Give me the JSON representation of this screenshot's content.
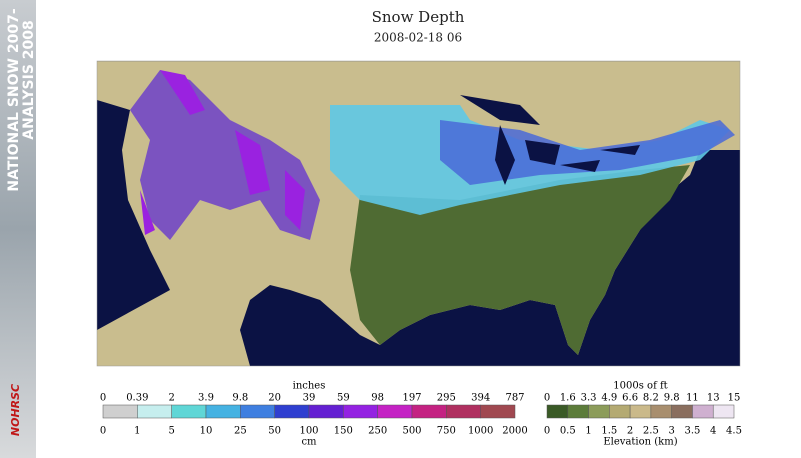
{
  "header": {
    "title": "Snow Depth",
    "subtitle": "2008-02-18 06"
  },
  "sidebar": {
    "line1": "NATIONAL SNOW 2007-",
    "line2": "ANALYSIS 2008",
    "logo": "NOHRSC"
  },
  "snow_legend": {
    "top_unit": "inches",
    "bottom_unit": "cm",
    "top_labels": [
      0,
      0.39,
      2,
      3.9,
      9.8,
      20,
      39,
      59,
      98,
      197,
      295,
      394,
      787
    ],
    "bottom_labels": [
      0,
      1,
      5,
      10,
      25,
      50,
      100,
      150,
      250,
      500,
      750,
      1000,
      2000
    ],
    "colors": [
      "#cfcfcf",
      "#c6eeee",
      "#5fd6d6",
      "#45b2e2",
      "#3f7fe0",
      "#2f3fd0",
      "#6420d2",
      "#9422e2",
      "#c422c4",
      "#c42282",
      "#b03060",
      "#a04850"
    ]
  },
  "elevation_legend": {
    "top_unit": "1000s of ft",
    "bottom_unit": "Elevation (km)",
    "top_labels": [
      0,
      1.6,
      3.3,
      4.9,
      6.6,
      8.2,
      9.8,
      11,
      13,
      15
    ],
    "bottom_labels": [
      0,
      0.5,
      1,
      1.5,
      2,
      2.5,
      3,
      3.5,
      4,
      4.5
    ],
    "colors": [
      "#3a5a26",
      "#5c7c3a",
      "#8c9c5a",
      "#b4aa72",
      "#cab98a",
      "#a88e6e",
      "#8a6e5e",
      "#cfb0d0",
      "#eee6f2"
    ]
  }
}
